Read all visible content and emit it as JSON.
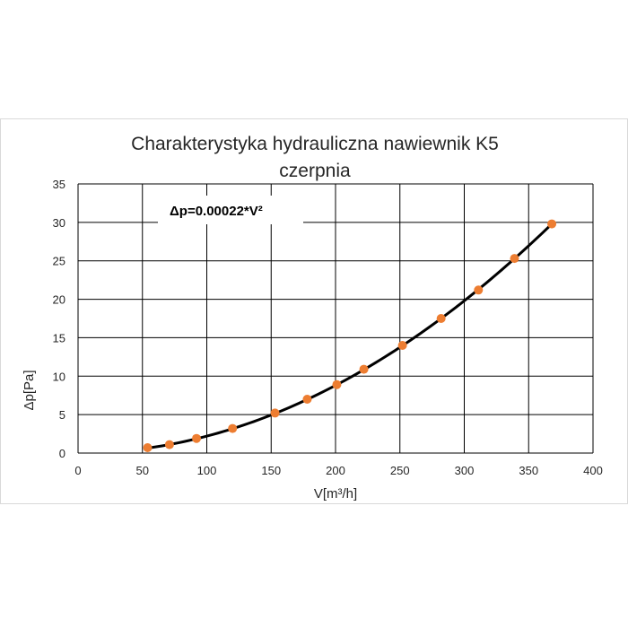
{
  "chart_data": {
    "type": "scatter",
    "title_line1": "Charakterystyka hydrauliczna nawiewnik K5",
    "title_line2": "czerpnia",
    "xlabel": "V[m³/h]",
    "ylabel": "Δp[Pa]",
    "xlim": [
      0,
      400
    ],
    "ylim": [
      0,
      35
    ],
    "x_ticks": [
      0,
      50,
      100,
      150,
      200,
      250,
      300,
      350,
      400
    ],
    "y_ticks": [
      0,
      5,
      10,
      15,
      20,
      25,
      30,
      35
    ],
    "grid": true,
    "legend": "none",
    "annotation": "Δp=0.00022*V²",
    "trendline": {
      "equation": "Δp=0.00022*V²",
      "coefficient": 0.00022,
      "exponent": 2,
      "x_range": [
        54,
        368
      ]
    },
    "series": [
      {
        "x": [
          54,
          71,
          92,
          120,
          153,
          178,
          201,
          222,
          252,
          282,
          311,
          339,
          368
        ],
        "y": [
          0.7,
          1.1,
          1.9,
          3.2,
          5.2,
          7.0,
          8.9,
          10.9,
          14.0,
          17.5,
          21.2,
          25.3,
          29.8
        ]
      }
    ],
    "colors": {
      "points": "#ed7d31",
      "curve": "#000000",
      "grid": "#000000",
      "axis_text": "#595959"
    }
  }
}
